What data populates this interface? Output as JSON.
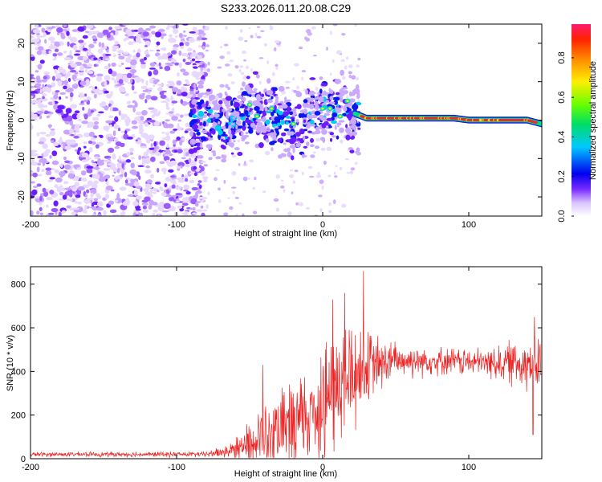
{
  "title": "S233.2026.011.20.08.C29",
  "chart_data": [
    {
      "type": "heatmap",
      "xlabel": "Height of straight line (km)",
      "ylabel": "Frequency (Hz)",
      "xlim": [
        -200,
        150
      ],
      "ylim": [
        -25,
        25
      ],
      "x_ticks": [
        -200,
        -100,
        0,
        100
      ],
      "y_ticks": [
        -20,
        -10,
        0,
        10,
        20
      ],
      "description_values": {
        "noise_region_x": [
          -200,
          -85
        ],
        "signal_track": [
          [
            -90,
            0
          ],
          [
            -80,
            1
          ],
          [
            -70,
            -2
          ],
          [
            -60,
            0
          ],
          [
            -50,
            3
          ],
          [
            -40,
            2
          ],
          [
            -30,
            -1
          ],
          [
            -20,
            -2
          ],
          [
            -10,
            1
          ],
          [
            0,
            3
          ],
          [
            10,
            2
          ],
          [
            15,
            5
          ],
          [
            20,
            2
          ],
          [
            30,
            0.5
          ],
          [
            50,
            0.5
          ],
          [
            70,
            0.5
          ],
          [
            90,
            0.5
          ],
          [
            100,
            0
          ],
          [
            120,
            0
          ],
          [
            140,
            0
          ],
          [
            150,
            -1
          ]
        ]
      },
      "colorbar": {
        "label": "Normalized spectral amplitude",
        "range": [
          0,
          0.97
        ],
        "ticks": [
          "0.0",
          "0.2",
          "0.4",
          "0.6",
          "0.8"
        ]
      }
    },
    {
      "type": "line",
      "xlabel": "Height of straight line (km)",
      "ylabel": "SNR (10 * v/v)",
      "xlim": [
        -200,
        150
      ],
      "ylim": [
        0,
        880
      ],
      "x_ticks": [
        -200,
        -100,
        0,
        100
      ],
      "y_ticks": [
        0,
        200,
        400,
        600,
        800
      ],
      "color": "#ee2222",
      "envelope": [
        {
          "x": -200,
          "base": 20,
          "amp": 10
        },
        {
          "x": -80,
          "base": 20,
          "amp": 12
        },
        {
          "x": -60,
          "base": 40,
          "amp": 40
        },
        {
          "x": -45,
          "base": 90,
          "amp": 120
        },
        {
          "x": -30,
          "base": 120,
          "amp": 160
        },
        {
          "x": -15,
          "base": 180,
          "amp": 200
        },
        {
          "x": 0,
          "base": 260,
          "amp": 260
        },
        {
          "x": 10,
          "base": 330,
          "amp": 300
        },
        {
          "x": 20,
          "base": 380,
          "amp": 280
        },
        {
          "x": 30,
          "base": 420,
          "amp": 160
        },
        {
          "x": 50,
          "base": 450,
          "amp": 80
        },
        {
          "x": 80,
          "base": 450,
          "amp": 60
        },
        {
          "x": 110,
          "base": 440,
          "amp": 60
        },
        {
          "x": 140,
          "base": 440,
          "amp": 120
        },
        {
          "x": 150,
          "base": 430,
          "amp": 140
        }
      ],
      "peaks": [
        {
          "x": -41,
          "value": 430
        },
        {
          "x": 7,
          "value": 730
        },
        {
          "x": 15,
          "value": 760
        },
        {
          "x": 28,
          "value": 860
        },
        {
          "x": 145,
          "value": 650
        },
        {
          "x": 144,
          "value": 110
        }
      ]
    }
  ]
}
